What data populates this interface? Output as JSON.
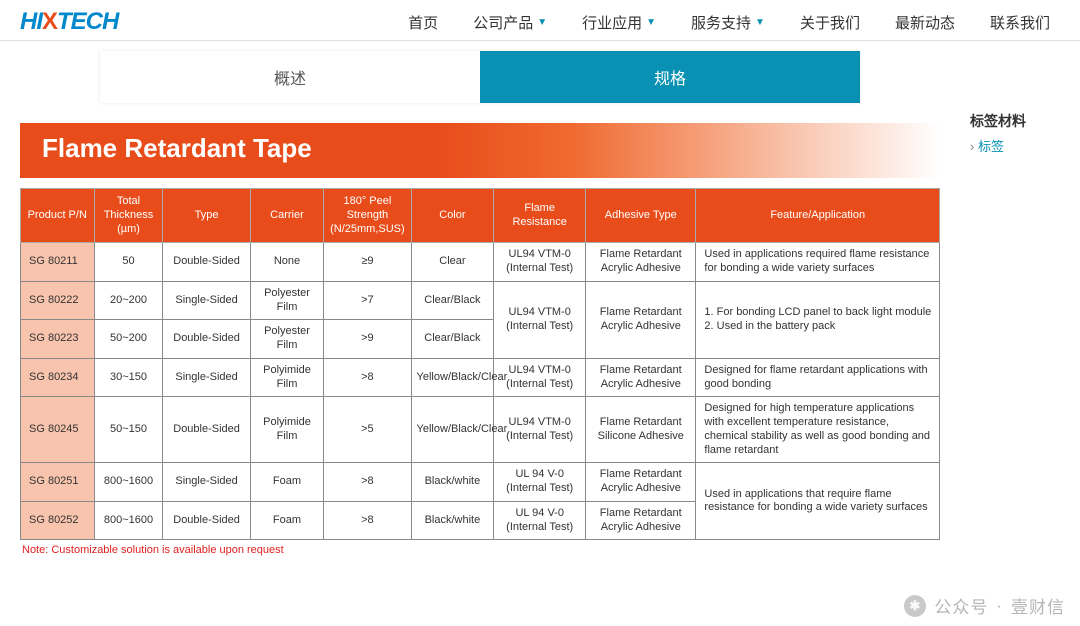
{
  "brand": {
    "name_left": "HI",
    "name_x": "X",
    "name_right": "TECH",
    "color_primary": "#0088cc",
    "color_x": "#e84c1a"
  },
  "nav": {
    "items": [
      {
        "label": "首页",
        "dropdown": false
      },
      {
        "label": "公司产品",
        "dropdown": true
      },
      {
        "label": "行业应用",
        "dropdown": true
      },
      {
        "label": "服务支持",
        "dropdown": true
      },
      {
        "label": "关于我们",
        "dropdown": false
      },
      {
        "label": "最新动态",
        "dropdown": false
      },
      {
        "label": "联系我们",
        "dropdown": false
      }
    ],
    "caret_color": "#0891b2"
  },
  "tabs": {
    "inactive": "概述",
    "active": "规格",
    "active_bg": "#0891b2",
    "active_color": "#ffffff"
  },
  "sidebar": {
    "title": "标签材料",
    "link": "标签",
    "link_color": "#0891b2"
  },
  "banner": {
    "title": "Flame Retardant Tape",
    "bg_from": "#e84c1a",
    "bg_to": "#ffffff",
    "text_color": "#ffffff",
    "fontsize": 26
  },
  "table": {
    "header_bg": "#e84c1a",
    "header_text": "#ffffff",
    "pn_bg": "#f9c4ad",
    "border_color": "#888888",
    "fontsize": 11,
    "col_widths_pct": [
      8,
      7.5,
      9.5,
      8,
      9.5,
      9,
      10,
      12,
      26.5
    ],
    "columns": [
      "Product P/N",
      "Total Thickness (µm)",
      "Type",
      "Carrier",
      "180° Peel Strength (N/25mm,SUS)",
      "Color",
      "Flame Resistance",
      "Adhesive Type",
      "Feature/Application"
    ],
    "rows": [
      {
        "pn": "SG 80211",
        "thk": "50",
        "type": "Double-Sided",
        "carrier": "None",
        "peel": "≥9",
        "color": "Clear",
        "flame": "UL94 VTM-0 (Internal Test)",
        "adh": "Flame Retardant Acrylic Adhesive",
        "feat": "Used in applications required flame resistance for bonding a wide variety surfaces",
        "flame_rs": 1,
        "adh_rs": 1,
        "feat_rs": 1
      },
      {
        "pn": "SG 80222",
        "thk": "20~200",
        "type": "Single-Sided",
        "carrier": "Polyester Film",
        "peel": ">7",
        "color": "Clear/Black",
        "flame": "UL94 VTM-0 (Internal Test)",
        "adh": "Flame Retardant Acrylic Adhesive",
        "feat": "1. For bonding LCD panel to back light module\n2. Used in the battery pack",
        "flame_rs": 2,
        "adh_rs": 2,
        "feat_rs": 2
      },
      {
        "pn": "SG 80223",
        "thk": "50~200",
        "type": "Double-Sided",
        "carrier": "Polyester Film",
        "peel": ">9",
        "color": "Clear/Black",
        "flame": null,
        "adh": null,
        "feat": null
      },
      {
        "pn": "SG 80234",
        "thk": "30~150",
        "type": "Single-Sided",
        "carrier": "Polyimide Film",
        "peel": ">8",
        "color": "Yellow/Black/Clear",
        "flame": "UL94 VTM-0 (Internal Test)",
        "adh": "Flame Retardant Acrylic Adhesive",
        "feat": "Designed for flame retardant applications with good bonding",
        "flame_rs": 1,
        "adh_rs": 1,
        "feat_rs": 1
      },
      {
        "pn": "SG 80245",
        "thk": "50~150",
        "type": "Double-Sided",
        "carrier": "Polyimide Film",
        "peel": ">5",
        "color": "Yellow/Black/Clear",
        "flame": "UL94 VTM-0 (Internal Test)",
        "adh": "Flame Retardant Silicone Adhesive",
        "feat": "Designed for high temperature applications with excellent temperature resistance, chemical stability as well as good bonding and flame retardant",
        "flame_rs": 1,
        "adh_rs": 1,
        "feat_rs": 1
      },
      {
        "pn": "SG 80251",
        "thk": "800~1600",
        "type": "Single-Sided",
        "carrier": "Foam",
        "peel": ">8",
        "color": "Black/white",
        "flame": "UL 94 V-0 (Internal Test)",
        "adh": "Flame Retardant Acrylic Adhesive",
        "feat": "Used in applications that require flame resistance for bonding a wide variety surfaces",
        "flame_rs": 1,
        "adh_rs": 1,
        "feat_rs": 2
      },
      {
        "pn": "SG 80252",
        "thk": "800~1600",
        "type": "Double-Sided",
        "carrier": "Foam",
        "peel": ">8",
        "color": "Black/white",
        "flame": "UL 94 V-0 (Internal Test)",
        "adh": "Flame Retardant Acrylic Adhesive",
        "feat": null,
        "flame_rs": 1,
        "adh_rs": 1
      }
    ],
    "note": "Note: Customizable solution is available upon request",
    "note_color": "#e02020"
  },
  "watermark": {
    "label": "公众号",
    "dot": "·",
    "name": "壹财信"
  }
}
